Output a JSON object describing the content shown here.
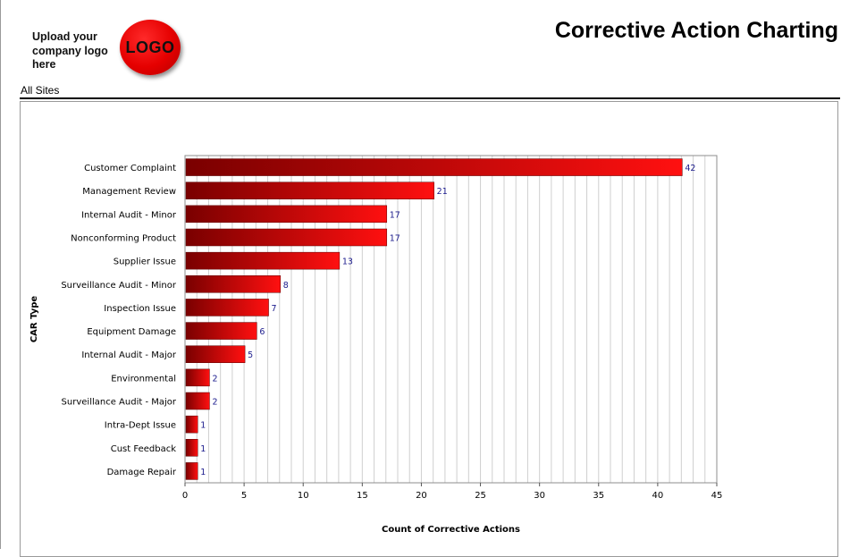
{
  "header": {
    "upload_text": "Upload your company logo here",
    "logo_text": "LOGO",
    "title": "Corrective Action Charting",
    "site": "All Sites"
  },
  "chart_data": {
    "type": "bar",
    "orientation": "horizontal",
    "categories": [
      "Customer Complaint",
      "Management Review",
      "Internal Audit - Minor",
      "Nonconforming Product",
      "Supplier Issue",
      "Surveillance Audit - Minor",
      "Inspection Issue",
      "Equipment Damage",
      "Internal Audit - Major",
      "Environmental",
      "Surveillance Audit - Major",
      "Intra-Dept Issue",
      "Cust Feedback",
      "Damage Repair"
    ],
    "values": [
      42,
      21,
      17,
      17,
      13,
      8,
      7,
      6,
      5,
      2,
      2,
      1,
      1,
      1
    ],
    "xlabel": "Count of Corrective Actions",
    "ylabel": "CAR Type",
    "xlim": [
      0,
      45
    ],
    "xticks": [
      0,
      5,
      10,
      15,
      20,
      25,
      30,
      35,
      40,
      45
    ],
    "grid": "vertical",
    "colors": {
      "bar_dark": "#7a0000",
      "bar_light": "#ff1010",
      "value_label": "#1a1a8c"
    }
  }
}
